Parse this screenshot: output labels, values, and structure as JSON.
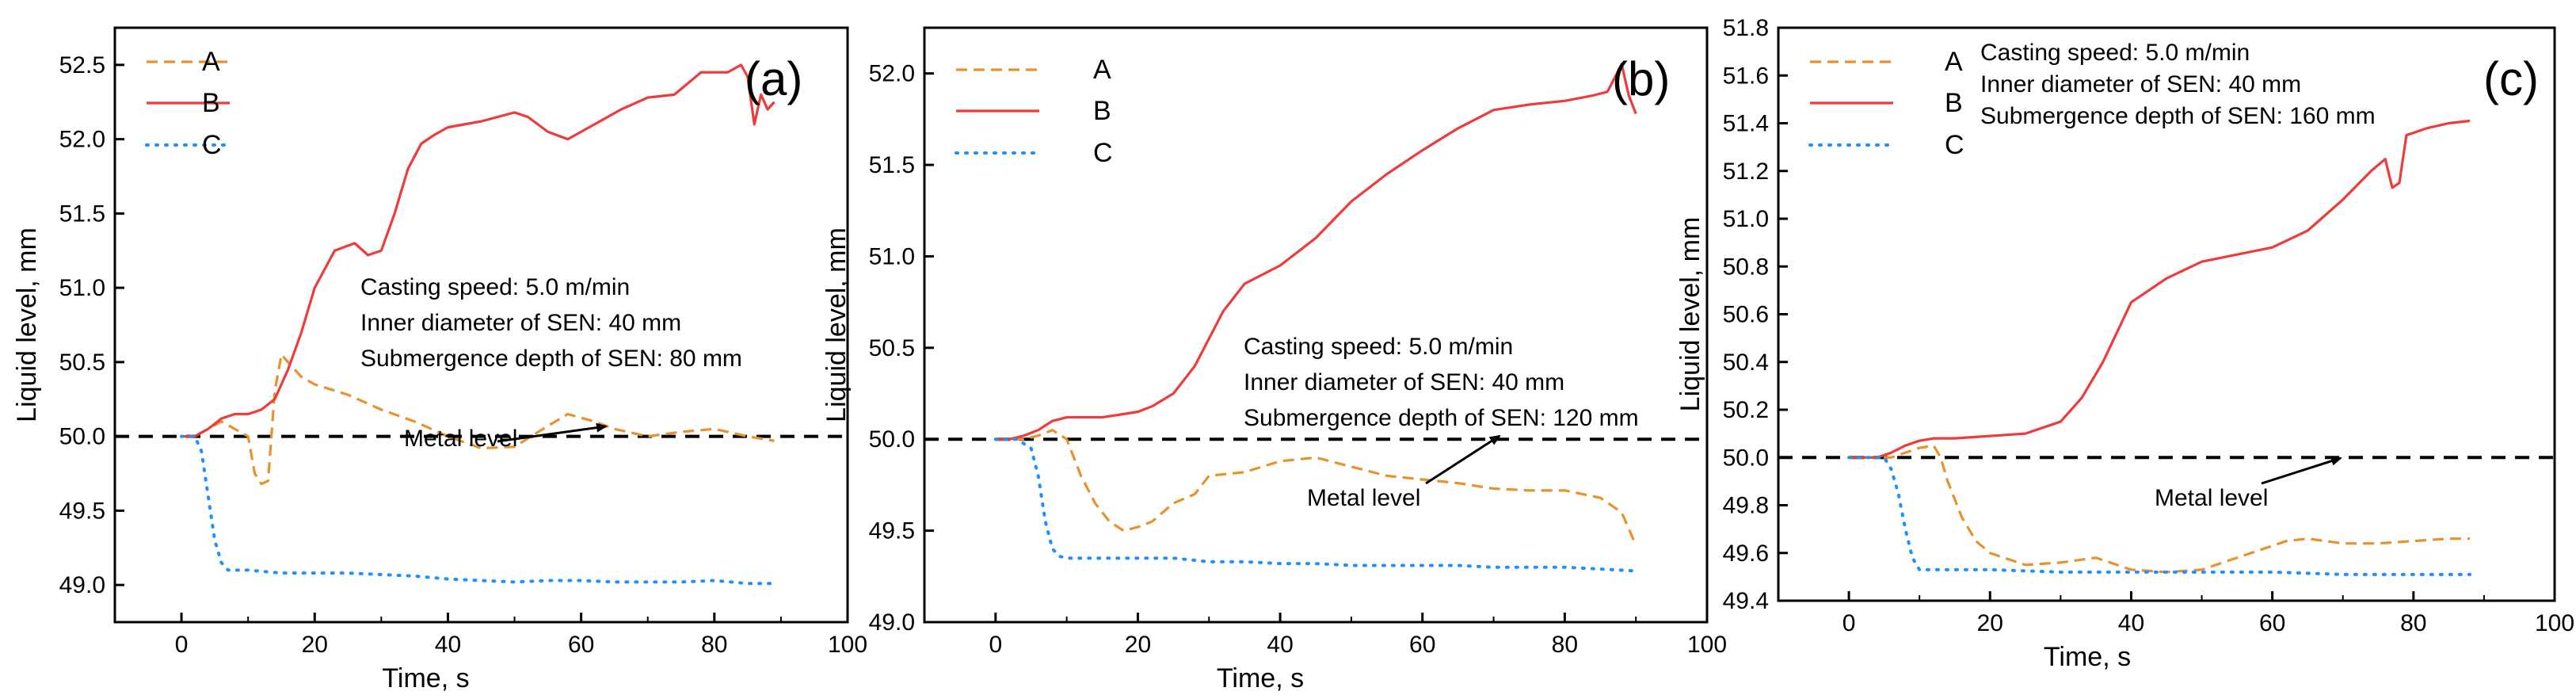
{
  "chart_data": [
    {
      "type": "line",
      "panel_label": "(a)",
      "xlabel": "Time, s",
      "ylabel": "Liquid level, mm",
      "xlim": [
        -10,
        100
      ],
      "ylim": [
        48.75,
        52.75
      ],
      "xticks": [
        0,
        20,
        40,
        60,
        80,
        100
      ],
      "yticks": [
        49.0,
        49.5,
        50.0,
        50.5,
        51.0,
        51.5,
        52.0,
        52.5
      ],
      "xtick_labels": [
        "0",
        "20",
        "40",
        "60",
        "80",
        "100"
      ],
      "ytick_labels": [
        "49.0",
        "49.5",
        "50.0",
        "50.5",
        "51.0",
        "51.5",
        "52.0",
        "52.5"
      ],
      "legend_position": "top-left",
      "reference_line": 50.0,
      "annotations": [
        "Casting speed: 5.0 m/min",
        "Inner diameter of SEN: 40 mm",
        "Submergence depth of SEN: 80 mm"
      ],
      "metal_level_label": "Metal level",
      "series": [
        {
          "name": "A",
          "style": "dashed",
          "color": "#E8922E",
          "x": [
            0,
            2,
            4,
            6,
            8,
            10,
            11,
            12,
            13,
            14,
            15,
            16,
            18,
            20,
            25,
            30,
            35,
            40,
            45,
            50,
            55,
            58,
            62,
            65,
            70,
            75,
            80,
            85,
            89
          ],
          "y": [
            50.0,
            50.0,
            50.05,
            50.1,
            50.05,
            50.0,
            49.75,
            49.68,
            49.7,
            50.3,
            50.55,
            50.5,
            50.4,
            50.35,
            50.28,
            50.18,
            50.1,
            50.0,
            49.92,
            49.93,
            50.07,
            50.15,
            50.1,
            50.05,
            50.0,
            50.03,
            50.05,
            50.0,
            49.97
          ]
        },
        {
          "name": "B",
          "style": "solid",
          "color": "#EE3B3B",
          "x": [
            0,
            2,
            4,
            6,
            8,
            10,
            12,
            14,
            16,
            18,
            20,
            23,
            26,
            28,
            30,
            32,
            34,
            36,
            38,
            40,
            45,
            50,
            52,
            55,
            58,
            62,
            66,
            70,
            74,
            78,
            82,
            84,
            85,
            86,
            87,
            88,
            89
          ],
          "y": [
            50.0,
            50.0,
            50.05,
            50.12,
            50.15,
            50.15,
            50.18,
            50.25,
            50.45,
            50.7,
            51.0,
            51.25,
            51.3,
            51.22,
            51.25,
            51.5,
            51.8,
            51.97,
            52.03,
            52.08,
            52.12,
            52.18,
            52.15,
            52.05,
            52.0,
            52.1,
            52.2,
            52.28,
            52.3,
            52.45,
            52.45,
            52.5,
            52.42,
            52.1,
            52.3,
            52.2,
            52.25
          ]
        },
        {
          "name": "C",
          "style": "dotted",
          "color": "#1E90FF",
          "x": [
            0,
            2,
            3,
            4,
            5,
            6,
            7,
            10,
            15,
            20,
            25,
            30,
            35,
            40,
            45,
            50,
            55,
            60,
            65,
            70,
            75,
            80,
            85,
            89
          ],
          "y": [
            50.0,
            50.0,
            49.9,
            49.6,
            49.3,
            49.15,
            49.1,
            49.1,
            49.08,
            49.08,
            49.08,
            49.07,
            49.06,
            49.04,
            49.03,
            49.02,
            49.03,
            49.03,
            49.02,
            49.02,
            49.02,
            49.03,
            49.01,
            49.01
          ]
        }
      ]
    },
    {
      "type": "line",
      "panel_label": "(b)",
      "xlabel": "Time, s",
      "ylabel": "Liquid level, mm",
      "xlim": [
        -10,
        100
      ],
      "ylim": [
        49.0,
        52.25
      ],
      "xticks": [
        0,
        20,
        40,
        60,
        80,
        100
      ],
      "yticks": [
        49.0,
        49.5,
        50.0,
        50.5,
        51.0,
        51.5,
        52.0
      ],
      "xtick_labels": [
        "0",
        "20",
        "40",
        "60",
        "80",
        "100"
      ],
      "ytick_labels": [
        "49.0",
        "49.5",
        "50.0",
        "50.5",
        "51.0",
        "51.5",
        "52.0"
      ],
      "legend_position": "top-left",
      "reference_line": 50.0,
      "annotations": [
        "Casting speed: 5.0 m/min",
        "Inner diameter of SEN: 40 mm",
        "Submergence depth of SEN: 120 mm"
      ],
      "metal_level_label": "Metal level",
      "series": [
        {
          "name": "A",
          "style": "dashed",
          "color": "#E8922E",
          "x": [
            0,
            2,
            4,
            6,
            8,
            10,
            12,
            14,
            16,
            18,
            20,
            22,
            25,
            28,
            30,
            35,
            40,
            45,
            50,
            55,
            60,
            65,
            70,
            75,
            80,
            85,
            88,
            90
          ],
          "y": [
            50.0,
            50.0,
            50.0,
            50.02,
            50.05,
            50.0,
            49.8,
            49.65,
            49.55,
            49.5,
            49.52,
            49.55,
            49.65,
            49.7,
            49.8,
            49.82,
            49.88,
            49.9,
            49.85,
            49.8,
            49.78,
            49.76,
            49.73,
            49.72,
            49.72,
            49.68,
            49.6,
            49.42
          ]
        },
        {
          "name": "B",
          "style": "solid",
          "color": "#EE3B3B",
          "x": [
            0,
            2,
            4,
            6,
            8,
            10,
            15,
            20,
            22,
            25,
            28,
            30,
            32,
            35,
            40,
            45,
            50,
            55,
            60,
            65,
            70,
            75,
            80,
            84,
            86,
            88,
            89,
            90
          ],
          "y": [
            50.0,
            50.0,
            50.02,
            50.05,
            50.1,
            50.12,
            50.12,
            50.15,
            50.18,
            50.25,
            50.4,
            50.55,
            50.7,
            50.85,
            50.95,
            51.1,
            51.3,
            51.45,
            51.58,
            51.7,
            51.8,
            51.83,
            51.85,
            51.88,
            51.9,
            52.05,
            51.88,
            51.78
          ]
        },
        {
          "name": "C",
          "style": "dotted",
          "color": "#1E90FF",
          "x": [
            0,
            3,
            5,
            6,
            7,
            8,
            9,
            10,
            15,
            20,
            25,
            30,
            35,
            40,
            45,
            50,
            55,
            60,
            65,
            70,
            75,
            80,
            85,
            90
          ],
          "y": [
            50.0,
            50.0,
            49.95,
            49.8,
            49.55,
            49.4,
            49.36,
            49.35,
            49.35,
            49.35,
            49.35,
            49.33,
            49.33,
            49.32,
            49.32,
            49.31,
            49.31,
            49.31,
            49.31,
            49.3,
            49.3,
            49.3,
            49.29,
            49.28
          ]
        }
      ]
    },
    {
      "type": "line",
      "panel_label": "(c)",
      "xlabel": "Time, s",
      "ylabel": "Liquid level, mm",
      "xlim": [
        -10,
        100
      ],
      "ylim": [
        49.4,
        51.8
      ],
      "xticks": [
        0,
        20,
        40,
        60,
        80,
        100
      ],
      "yticks": [
        49.4,
        49.6,
        49.8,
        50.0,
        50.2,
        50.4,
        50.6,
        50.8,
        51.0,
        51.2,
        51.4,
        51.6,
        51.8
      ],
      "xtick_labels": [
        "0",
        "20",
        "40",
        "60",
        "80",
        "100"
      ],
      "ytick_labels": [
        "49.4",
        "49.6",
        "49.8",
        "50.0",
        "50.2",
        "50.4",
        "50.6",
        "50.8",
        "51.0",
        "51.2",
        "51.4",
        "51.6",
        "51.8"
      ],
      "legend_position": "top-left",
      "reference_line": 50.0,
      "annotations": [
        "Casting speed: 5.0 m/min",
        "Inner diameter of SEN: 40 mm",
        "Submergence depth of SEN: 160 mm"
      ],
      "metal_level_label": "Metal level",
      "series": [
        {
          "name": "A",
          "style": "dashed",
          "color": "#E8922E",
          "x": [
            0,
            4,
            6,
            8,
            10,
            12,
            13,
            14,
            16,
            18,
            20,
            25,
            30,
            35,
            40,
            45,
            50,
            55,
            60,
            62,
            65,
            70,
            75,
            80,
            85,
            88
          ],
          "y": [
            50.0,
            50.0,
            50.0,
            50.02,
            50.04,
            50.05,
            50.0,
            49.9,
            49.75,
            49.65,
            49.6,
            49.55,
            49.56,
            49.58,
            49.53,
            49.52,
            49.53,
            49.58,
            49.63,
            49.65,
            49.66,
            49.64,
            49.64,
            49.65,
            49.66,
            49.66
          ]
        },
        {
          "name": "B",
          "style": "solid",
          "color": "#EE3B3B",
          "x": [
            0,
            4,
            6,
            8,
            10,
            12,
            15,
            20,
            25,
            30,
            33,
            36,
            40,
            45,
            50,
            55,
            60,
            65,
            70,
            74,
            76,
            77,
            78,
            79,
            82,
            85,
            88
          ],
          "y": [
            50.0,
            50.0,
            50.02,
            50.05,
            50.07,
            50.08,
            50.08,
            50.09,
            50.1,
            50.15,
            50.25,
            50.4,
            50.65,
            50.75,
            50.82,
            50.85,
            50.88,
            50.95,
            51.08,
            51.2,
            51.25,
            51.13,
            51.15,
            51.35,
            51.38,
            51.4,
            51.41
          ]
        },
        {
          "name": "C",
          "style": "dotted",
          "color": "#1E90FF",
          "x": [
            0,
            5,
            6,
            7,
            8,
            9,
            10,
            15,
            20,
            30,
            40,
            50,
            60,
            70,
            80,
            88
          ],
          "y": [
            50.0,
            50.0,
            49.95,
            49.85,
            49.7,
            49.58,
            49.53,
            49.53,
            49.53,
            49.52,
            49.52,
            49.52,
            49.52,
            49.51,
            49.51,
            49.51
          ]
        }
      ]
    }
  ]
}
